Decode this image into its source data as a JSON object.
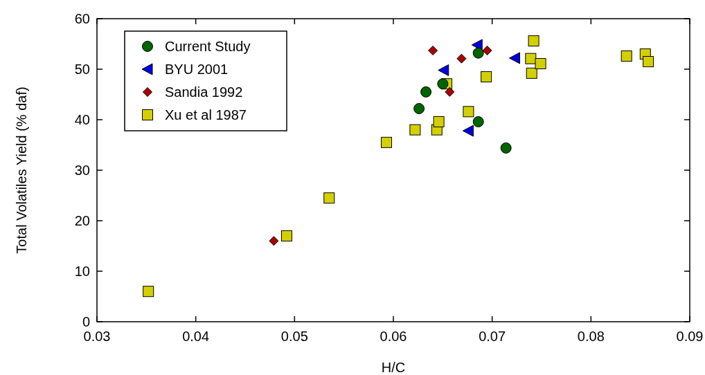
{
  "chart_data": {
    "type": "scatter",
    "xlabel": "H/C",
    "ylabel": "Total Volatiles Yield (% daf)",
    "xlim": [
      0.03,
      0.09
    ],
    "xticks": [
      0.03,
      0.04,
      0.05,
      0.06,
      0.07,
      0.08,
      0.09
    ],
    "ylim": [
      0,
      60
    ],
    "yticks": [
      0,
      10,
      20,
      30,
      40,
      50,
      60
    ],
    "legend": "top left",
    "grid": false,
    "series": [
      {
        "name": "Current Study",
        "color": "#006400",
        "marker": "circle",
        "x": [
          0.0626,
          0.0633,
          0.065,
          0.0686,
          0.0686,
          0.0714
        ],
        "values": [
          42.2,
          45.5,
          47.1,
          53.2,
          39.6,
          34.4
        ]
      },
      {
        "name": "BYU 2001",
        "color": "#0000dd",
        "marker": "triangle",
        "x": [
          0.0651,
          0.0685,
          0.0723,
          0.0676
        ],
        "values": [
          49.8,
          54.8,
          52.2,
          37.8
        ]
      },
      {
        "name": "Sandia 1992",
        "color": "#aa0000",
        "marker": "diamond",
        "x": [
          0.0479,
          0.064,
          0.0669,
          0.0695,
          0.0657
        ],
        "values": [
          16.0,
          53.7,
          52.1,
          53.7,
          45.5
        ]
      },
      {
        "name": "Xu et al 1987",
        "color": "#d4d000",
        "marker": "square",
        "x": [
          0.0352,
          0.0492,
          0.0535,
          0.0593,
          0.0622,
          0.0644,
          0.0646,
          0.0654,
          0.0676,
          0.0694,
          0.0742,
          0.0739,
          0.074,
          0.0749,
          0.0836,
          0.0855,
          0.0858
        ],
        "values": [
          6.0,
          17.0,
          24.5,
          35.5,
          38.0,
          38.0,
          39.6,
          47.1,
          41.6,
          48.5,
          55.6,
          52.1,
          49.2,
          51.1,
          52.6,
          53.0,
          51.5
        ]
      }
    ]
  }
}
